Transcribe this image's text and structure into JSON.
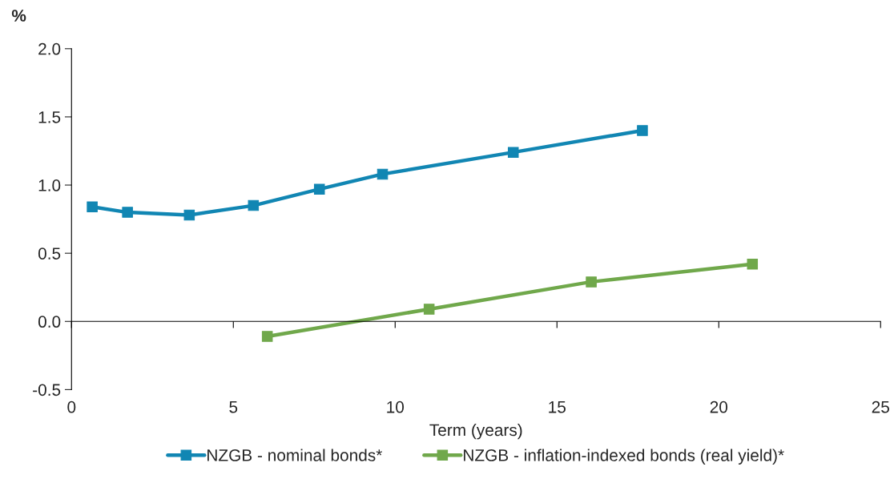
{
  "chart_data": {
    "type": "line",
    "xlabel": "Term (years)",
    "ylabel": "%",
    "xlim": [
      0,
      25
    ],
    "xticks": [
      0,
      5,
      10,
      15,
      20,
      25
    ],
    "ylim": [
      -0.5,
      2.0
    ],
    "yticks": [
      {
        "value": -0.5,
        "label": "-0.5"
      },
      {
        "value": 0,
        "label": "0.0"
      },
      {
        "value": 0.5,
        "label": "0.5"
      },
      {
        "value": 1.0,
        "label": "1.0"
      },
      {
        "value": 1.5,
        "label": "1.5"
      },
      {
        "value": 2.0,
        "label": "2.0"
      }
    ],
    "legend": "bottom",
    "marker": "square",
    "line_style": "solid",
    "series": [
      {
        "name": "NZGB - nominal bonds*",
        "color": "#1186b3",
        "x": [
          0.64,
          1.73,
          3.64,
          5.62,
          7.66,
          9.61,
          13.65,
          17.64
        ],
        "values": [
          0.84,
          0.8,
          0.78,
          0.85,
          0.97,
          1.08,
          1.24,
          1.4
        ]
      },
      {
        "name": "NZGB - inflation-indexed bonds (real yield)*",
        "color": "#70a84b",
        "x": [
          6.05,
          11.05,
          16.06,
          21.04
        ],
        "values": [
          -0.11,
          0.09,
          0.29,
          0.42
        ]
      }
    ]
  }
}
